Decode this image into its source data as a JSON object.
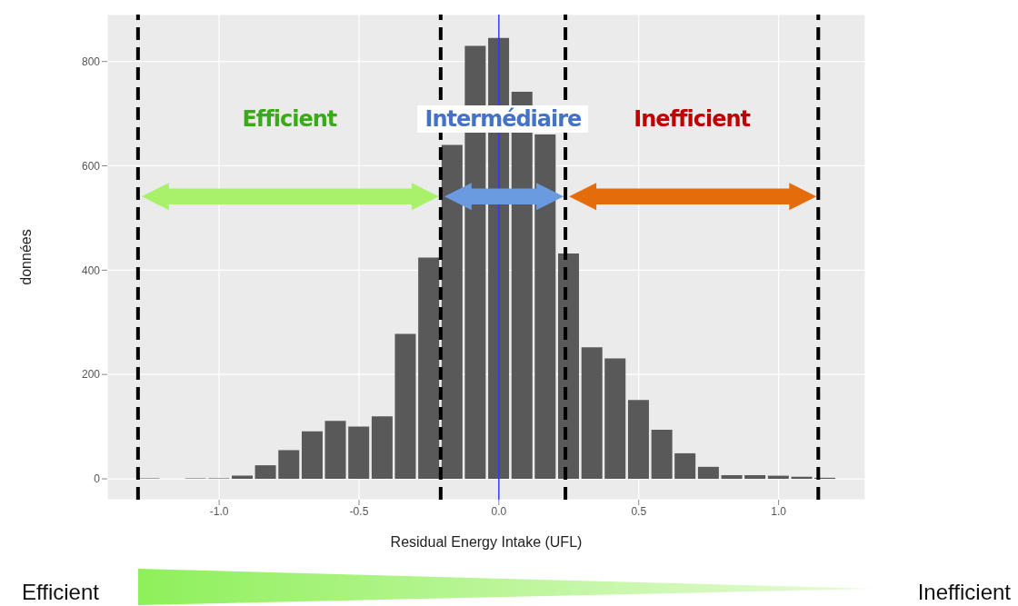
{
  "chart_data": {
    "type": "histogram",
    "xlabel": "Residual Energy Intake (UFL)",
    "ylabel": "données",
    "bins": [
      -1.292,
      -1.208,
      -1.125,
      -1.042,
      -0.958,
      -0.875,
      -0.792,
      -0.708,
      -0.625,
      -0.542,
      -0.458,
      -0.375,
      -0.292,
      -0.208,
      -0.125,
      -0.042,
      0.042,
      0.125,
      0.208,
      0.292,
      0.375,
      0.458,
      0.542,
      0.625,
      0.708,
      0.792,
      0.875,
      0.958,
      1.042,
      1.125,
      1.208
    ],
    "values": [
      1,
      0,
      1,
      1,
      6,
      26,
      55,
      91,
      111,
      100,
      120,
      278,
      424,
      640,
      830,
      845,
      742,
      660,
      432,
      252,
      231,
      151,
      94,
      49,
      23,
      7,
      7,
      6,
      4,
      2
    ],
    "color": "#595959",
    "xlim": [
      -1.4,
      1.31
    ],
    "ylim": [
      -40,
      890
    ],
    "xticks": [
      {
        "value": -1,
        "label": "-1.0"
      },
      -0.5,
      {
        "value": 0,
        "label": "0.0"
      },
      0.5,
      {
        "value": 1,
        "label": "1.0"
      }
    ],
    "yticks": [
      0,
      200,
      400,
      600,
      800
    ],
    "grid": true,
    "ref_lines": [
      {
        "axis": "x",
        "value": -1.29,
        "color": "#000000",
        "line_style": "dashed"
      },
      {
        "axis": "x",
        "value": -0.208,
        "color": "#000000",
        "line_style": "dashed"
      },
      {
        "axis": "x",
        "value": 0.238,
        "color": "#000000",
        "line_style": "dashed"
      },
      {
        "axis": "x",
        "value": 1.142,
        "color": "#000000",
        "line_style": "dashed"
      },
      {
        "axis": "x",
        "value": 0,
        "color": "#3333ff",
        "line_style": "solid"
      }
    ],
    "annotations": [
      "Efficient",
      "Intermédiaire",
      "Inefficient",
      "Efficient",
      "Inefficient"
    ]
  }
}
